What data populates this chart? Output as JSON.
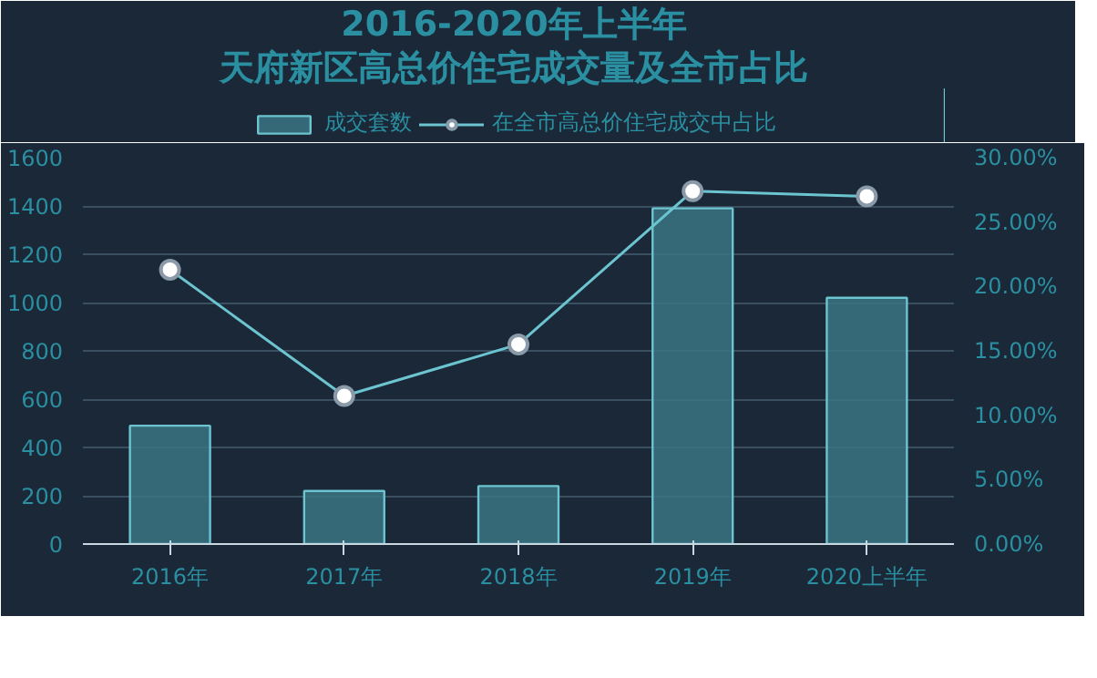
{
  "chart_data": {
    "type": "bar",
    "title": "2016-2020年上半年",
    "subtitle": "天府新区高总价住宅成交量及全市占比",
    "categories": [
      "2016年",
      "2017年",
      "2018年",
      "2019年",
      "2020上半年"
    ],
    "series": [
      {
        "name": "成交套数",
        "color": "#3a7482",
        "values": [
          490,
          220,
          240,
          1390,
          1020
        ]
      },
      {
        "name": "在全市高总价住宅成交中占比",
        "type": "line",
        "axis": "y2",
        "color": "#6cc4d0",
        "marker": "circle",
        "values": [
          21.3,
          11.5,
          15.5,
          27.4,
          27.0
        ]
      }
    ],
    "ylim": [
      0,
      1600
    ],
    "yticks": [
      0,
      200,
      400,
      600,
      800,
      1000,
      1200,
      1400,
      1600
    ],
    "y2lim": [
      0,
      30
    ],
    "y2ticks": [
      {
        "value": 0,
        "label": "0.00%"
      },
      {
        "value": 5,
        "label": "5.00%"
      },
      {
        "value": 10,
        "label": "10.00%"
      },
      {
        "value": 15,
        "label": "15.00%"
      },
      {
        "value": 20,
        "label": "20.00%"
      },
      {
        "value": 25,
        "label": "25.00%"
      },
      {
        "value": 30,
        "label": "30.00%"
      }
    ],
    "grid": "y",
    "legend": "top"
  }
}
